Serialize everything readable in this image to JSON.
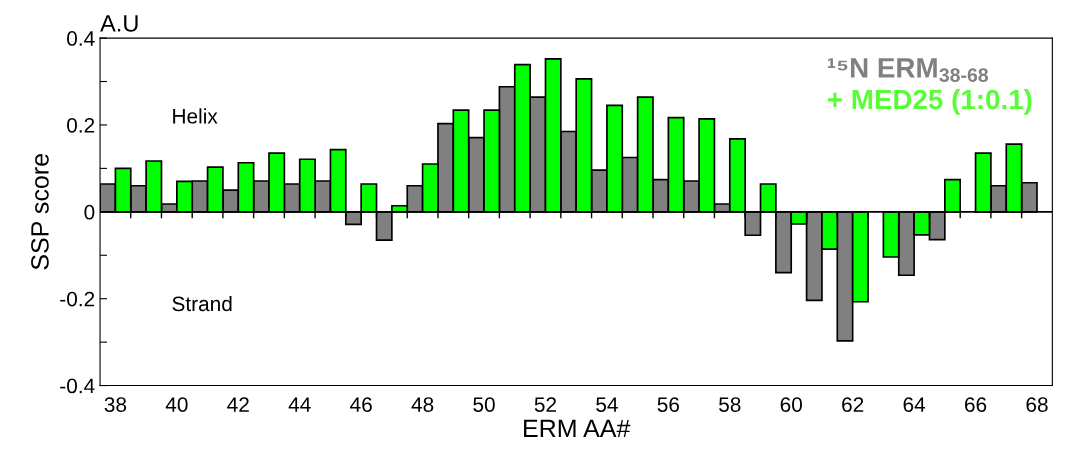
{
  "chart_data": {
    "type": "bar",
    "xlabel": "ERM AA#",
    "ylabel": "SSP score",
    "categories": [
      "38",
      null,
      "40",
      null,
      "42",
      null,
      "44",
      null,
      "46",
      null,
      "48",
      null,
      "50",
      null,
      "52",
      null,
      "54",
      null,
      "56",
      null,
      "58",
      null,
      "60",
      null,
      "62",
      null,
      "64",
      null,
      "66",
      null,
      "68"
    ],
    "series": [
      {
        "name": "¹⁵N ERM$_{38-68}$",
        "color": "#808080",
        "values": [
          0.064,
          0.06,
          0.018,
          0.071,
          0.05,
          0.071,
          0.064,
          0.071,
          -0.029,
          -0.065,
          0.06,
          0.203,
          0.171,
          0.288,
          0.264,
          0.185,
          0.096,
          0.125,
          0.074,
          0.071,
          0.018,
          -0.054,
          -0.14,
          -0.204,
          -0.297,
          null,
          -0.146,
          -0.064,
          null,
          0.06,
          0.067
        ]
      },
      {
        "name": "+ MED25 (1:0.1)",
        "color": "#00ff00",
        "values": [
          0.1,
          0.117,
          0.07,
          0.103,
          0.113,
          0.135,
          0.121,
          0.143,
          0.064,
          0.014,
          0.11,
          0.234,
          0.234,
          0.339,
          0.352,
          0.306,
          0.245,
          0.264,
          0.217,
          0.214,
          0.168,
          0.064,
          -0.028,
          -0.086,
          -0.207,
          -0.104,
          -0.053,
          0.074,
          0.135,
          0.156,
          null
        ]
      }
    ],
    "ylim": [
      -0.4,
      0.4
    ],
    "yticks": [
      {
        "value": -0.4,
        "label": "-0.4"
      },
      {
        "value": -0.3,
        "label": null
      },
      {
        "value": -0.2,
        "label": "-0.2"
      },
      {
        "value": -0.1,
        "label": null
      },
      0,
      {
        "value": 0.1,
        "label": null
      },
      0.2,
      {
        "value": 0.3,
        "label": null
      },
      0.4
    ],
    "ref_lines": [
      {
        "axis": "y",
        "value": 0,
        "color": "#000000"
      }
    ],
    "annotations": [
      "A.U",
      "Helix",
      "Strand"
    ],
    "legend": "top right",
    "grid": false
  }
}
